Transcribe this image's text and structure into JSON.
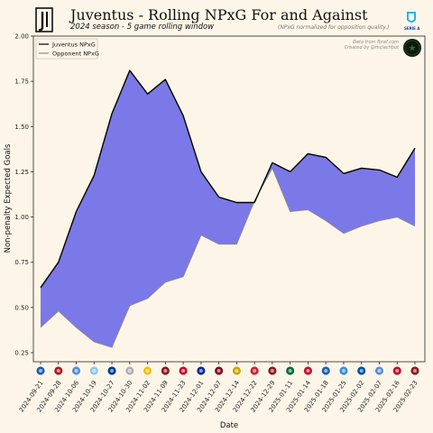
{
  "header": {
    "title": "Juventus - Rolling NPxG For and Against",
    "subtitle": "2024 season - 5 game rolling window",
    "note": "(NPxG normalized for opposition quality.)",
    "credit_line1": "Data from fbref.com",
    "credit_line2": "Created by @mclachbot",
    "league_badge_text": "SERIE A"
  },
  "colors": {
    "fill": "#7b78e8",
    "juventus_line": "#000000",
    "opponent_line": "#8a8a8a",
    "background": "#fdf6e8"
  },
  "chart_data": {
    "type": "area",
    "title": "Juventus - Rolling NPxG For and Against",
    "xlabel": "Date",
    "ylabel": "Non-penalty Expected Goals",
    "ylim": [
      0.2,
      2.0
    ],
    "yticks": [
      "0.25",
      "0.50",
      "0.75",
      "1.00",
      "1.25",
      "1.50",
      "1.75",
      "2.00"
    ],
    "grid": false,
    "legend_position": "top-left",
    "x": [
      "2024-09-21",
      "2024-09-28",
      "2024-10-06",
      "2024-10-19",
      "2024-10-27",
      "2024-10-30",
      "2024-11-02",
      "2024-11-09",
      "2024-11-23",
      "2024-12-01",
      "2024-12-07",
      "2024-12-14",
      "2024-12-22",
      "2024-12-29",
      "2025-01-11",
      "2025-01-14",
      "2025-01-18",
      "2025-01-25",
      "2025-02-02",
      "2025-02-07",
      "2025-02-16",
      "2025-02-23"
    ],
    "series": [
      {
        "name": "Juventus NPxG",
        "values": [
          0.61,
          0.75,
          1.03,
          1.23,
          1.57,
          1.81,
          1.68,
          1.76,
          1.56,
          1.25,
          1.11,
          1.08,
          1.08,
          1.3,
          1.25,
          1.35,
          1.33,
          1.24,
          1.27,
          1.26,
          1.22,
          1.38
        ]
      },
      {
        "name": "Opponent NPxG",
        "values": [
          0.39,
          0.48,
          0.39,
          0.31,
          0.28,
          0.51,
          0.55,
          0.64,
          0.67,
          0.9,
          0.85,
          0.85,
          1.09,
          1.27,
          1.03,
          1.04,
          0.98,
          0.91,
          0.95,
          0.98,
          1.0,
          0.95
        ]
      }
    ]
  },
  "opponent_badge_colors": [
    "#1f5fa8",
    "#b0191e",
    "#5a8fd0",
    "#8fc6e8",
    "#003a8c",
    "#b0b0b0",
    "#f0c000",
    "#8a1a1a",
    "#c0102a",
    "#0a2a8a",
    "#7a1020",
    "#c8a800",
    "#d02030",
    "#8a1a1a",
    "#0a6a3a",
    "#c0102a",
    "#1f5fa8",
    "#3a8fd0",
    "#0050a0",
    "#5a8fd0",
    "#c0102a",
    "#8a1a1a"
  ]
}
